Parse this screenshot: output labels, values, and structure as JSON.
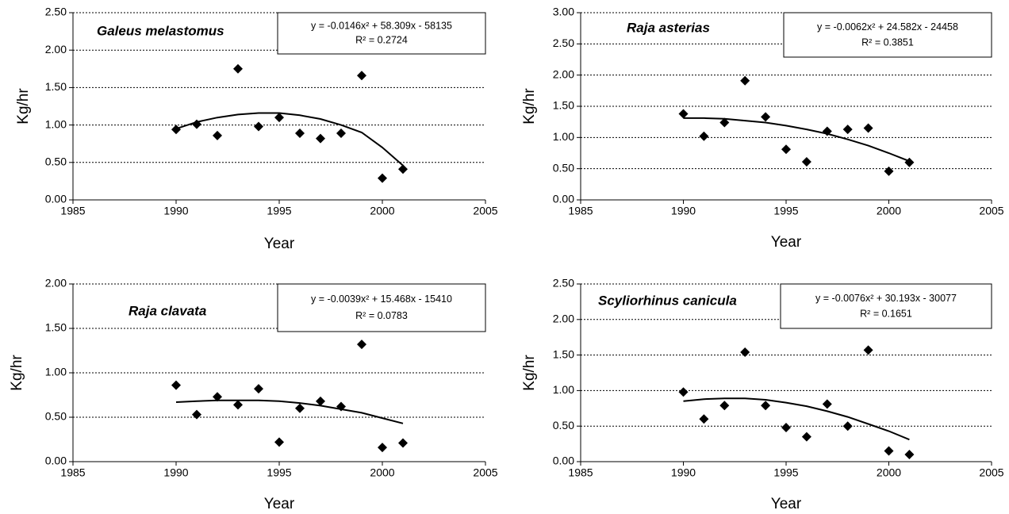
{
  "chart_data": [
    {
      "type": "scatter",
      "title": "Galeus melastomus",
      "equation": "y = -0.0146x² + 58.309x - 58135",
      "r_squared": "R² = 0.2724",
      "x_label": "Year",
      "y_label": "Kg/hr",
      "x": [
        1990,
        1991,
        1992,
        1993,
        1994,
        1995,
        1996,
        1997,
        1998,
        1999,
        2000,
        2001
      ],
      "values": [
        0.94,
        1.01,
        0.86,
        1.75,
        0.98,
        1.1,
        0.89,
        0.82,
        0.89,
        1.66,
        0.29,
        0.41
      ],
      "trend_values": [
        0.95,
        1.04,
        1.1,
        1.14,
        1.16,
        1.16,
        1.13,
        1.08,
        1.0,
        0.9,
        0.7,
        0.46
      ],
      "color": "#000000",
      "xlim": [
        1985,
        2005
      ],
      "xticks": [
        1985,
        1990,
        1995,
        2000,
        2005
      ],
      "ylim": [
        0,
        2.5
      ],
      "yticks": [
        {
          "value": 0,
          "label": "0.00"
        },
        {
          "value": 0.5,
          "label": "0.50"
        },
        {
          "value": 1,
          "label": "1.00"
        },
        {
          "value": 1.5,
          "label": "1.50"
        },
        {
          "value": 2,
          "label": "2.00"
        },
        {
          "value": 2.5,
          "label": "2.50"
        }
      ],
      "grid": true
    },
    {
      "type": "scatter",
      "title": "Raja asterias",
      "equation": "y = -0.0062x² + 24.582x - 24458",
      "r_squared": "R² = 0.3851",
      "x_label": "Year",
      "y_label": "Kg/hr",
      "x": [
        1990,
        1991,
        1992,
        1993,
        1994,
        1995,
        1996,
        1997,
        1998,
        1999,
        2000,
        2001
      ],
      "values": [
        1.38,
        1.02,
        1.24,
        1.91,
        1.33,
        0.81,
        0.61,
        1.1,
        1.13,
        1.15,
        0.46,
        0.6
      ],
      "trend_values": [
        1.31,
        1.31,
        1.3,
        1.27,
        1.24,
        1.19,
        1.13,
        1.06,
        0.97,
        0.87,
        0.75,
        0.62
      ],
      "color": "#000000",
      "xlim": [
        1985,
        2005
      ],
      "xticks": [
        1985,
        1990,
        1995,
        2000,
        2005
      ],
      "ylim": [
        0,
        3
      ],
      "yticks": [
        {
          "value": 0,
          "label": "0.00"
        },
        {
          "value": 0.5,
          "label": "0.50"
        },
        {
          "value": 1,
          "label": "1.00"
        },
        {
          "value": 1.5,
          "label": "1.50"
        },
        {
          "value": 2,
          "label": "2.00"
        },
        {
          "value": 2.5,
          "label": "2.50"
        },
        {
          "value": 3,
          "label": "3.00"
        }
      ],
      "grid": true
    },
    {
      "type": "scatter",
      "title": "Raja clavata",
      "equation": "y = -0.0039x² + 15.468x - 15410",
      "r_squared": "R² = 0.0783",
      "x_label": "Year",
      "y_label": "Kg/hr",
      "x": [
        1990,
        1991,
        1992,
        1993,
        1994,
        1995,
        1996,
        1997,
        1998,
        1999,
        2000,
        2001
      ],
      "values": [
        0.86,
        0.53,
        0.73,
        0.64,
        0.82,
        0.22,
        0.6,
        0.68,
        0.62,
        1.32,
        0.16,
        0.21
      ],
      "trend_values": [
        0.67,
        0.68,
        0.69,
        0.69,
        0.69,
        0.68,
        0.66,
        0.63,
        0.59,
        0.55,
        0.49,
        0.43
      ],
      "color": "#000000",
      "xlim": [
        1985,
        2005
      ],
      "xticks": [
        1985,
        1990,
        1995,
        2000,
        2005
      ],
      "ylim": [
        0,
        2
      ],
      "yticks": [
        {
          "value": 0,
          "label": "0.00"
        },
        {
          "value": 0.5,
          "label": "0.50"
        },
        {
          "value": 1,
          "label": "1.00"
        },
        {
          "value": 1.5,
          "label": "1.50"
        },
        {
          "value": 2,
          "label": "2.00"
        }
      ],
      "grid": true
    },
    {
      "type": "scatter",
      "title": "Scyliorhinus canicula",
      "equation": "y = -0.0076x² + 30.193x - 30077",
      "r_squared": "R² = 0.1651",
      "x_label": "Year",
      "y_label": "Kg/hr",
      "x": [
        1990,
        1991,
        1992,
        1993,
        1994,
        1995,
        1996,
        1997,
        1998,
        1999,
        2000,
        2001
      ],
      "values": [
        0.98,
        0.6,
        0.79,
        1.54,
        0.79,
        0.48,
        0.35,
        0.81,
        0.5,
        1.57,
        0.15,
        0.1
      ],
      "trend_values": [
        0.85,
        0.88,
        0.89,
        0.89,
        0.87,
        0.83,
        0.78,
        0.71,
        0.63,
        0.53,
        0.43,
        0.31
      ],
      "color": "#000000",
      "xlim": [
        1985,
        2005
      ],
      "xticks": [
        1985,
        1990,
        1995,
        2000,
        2005
      ],
      "ylim": [
        0,
        2.5
      ],
      "yticks": [
        {
          "value": 0,
          "label": "0.00"
        },
        {
          "value": 0.5,
          "label": "0.50"
        },
        {
          "value": 1,
          "label": "1.00"
        },
        {
          "value": 1.5,
          "label": "1.50"
        },
        {
          "value": 2,
          "label": "2.00"
        },
        {
          "value": 2.5,
          "label": "2.50"
        }
      ],
      "grid": true
    }
  ]
}
